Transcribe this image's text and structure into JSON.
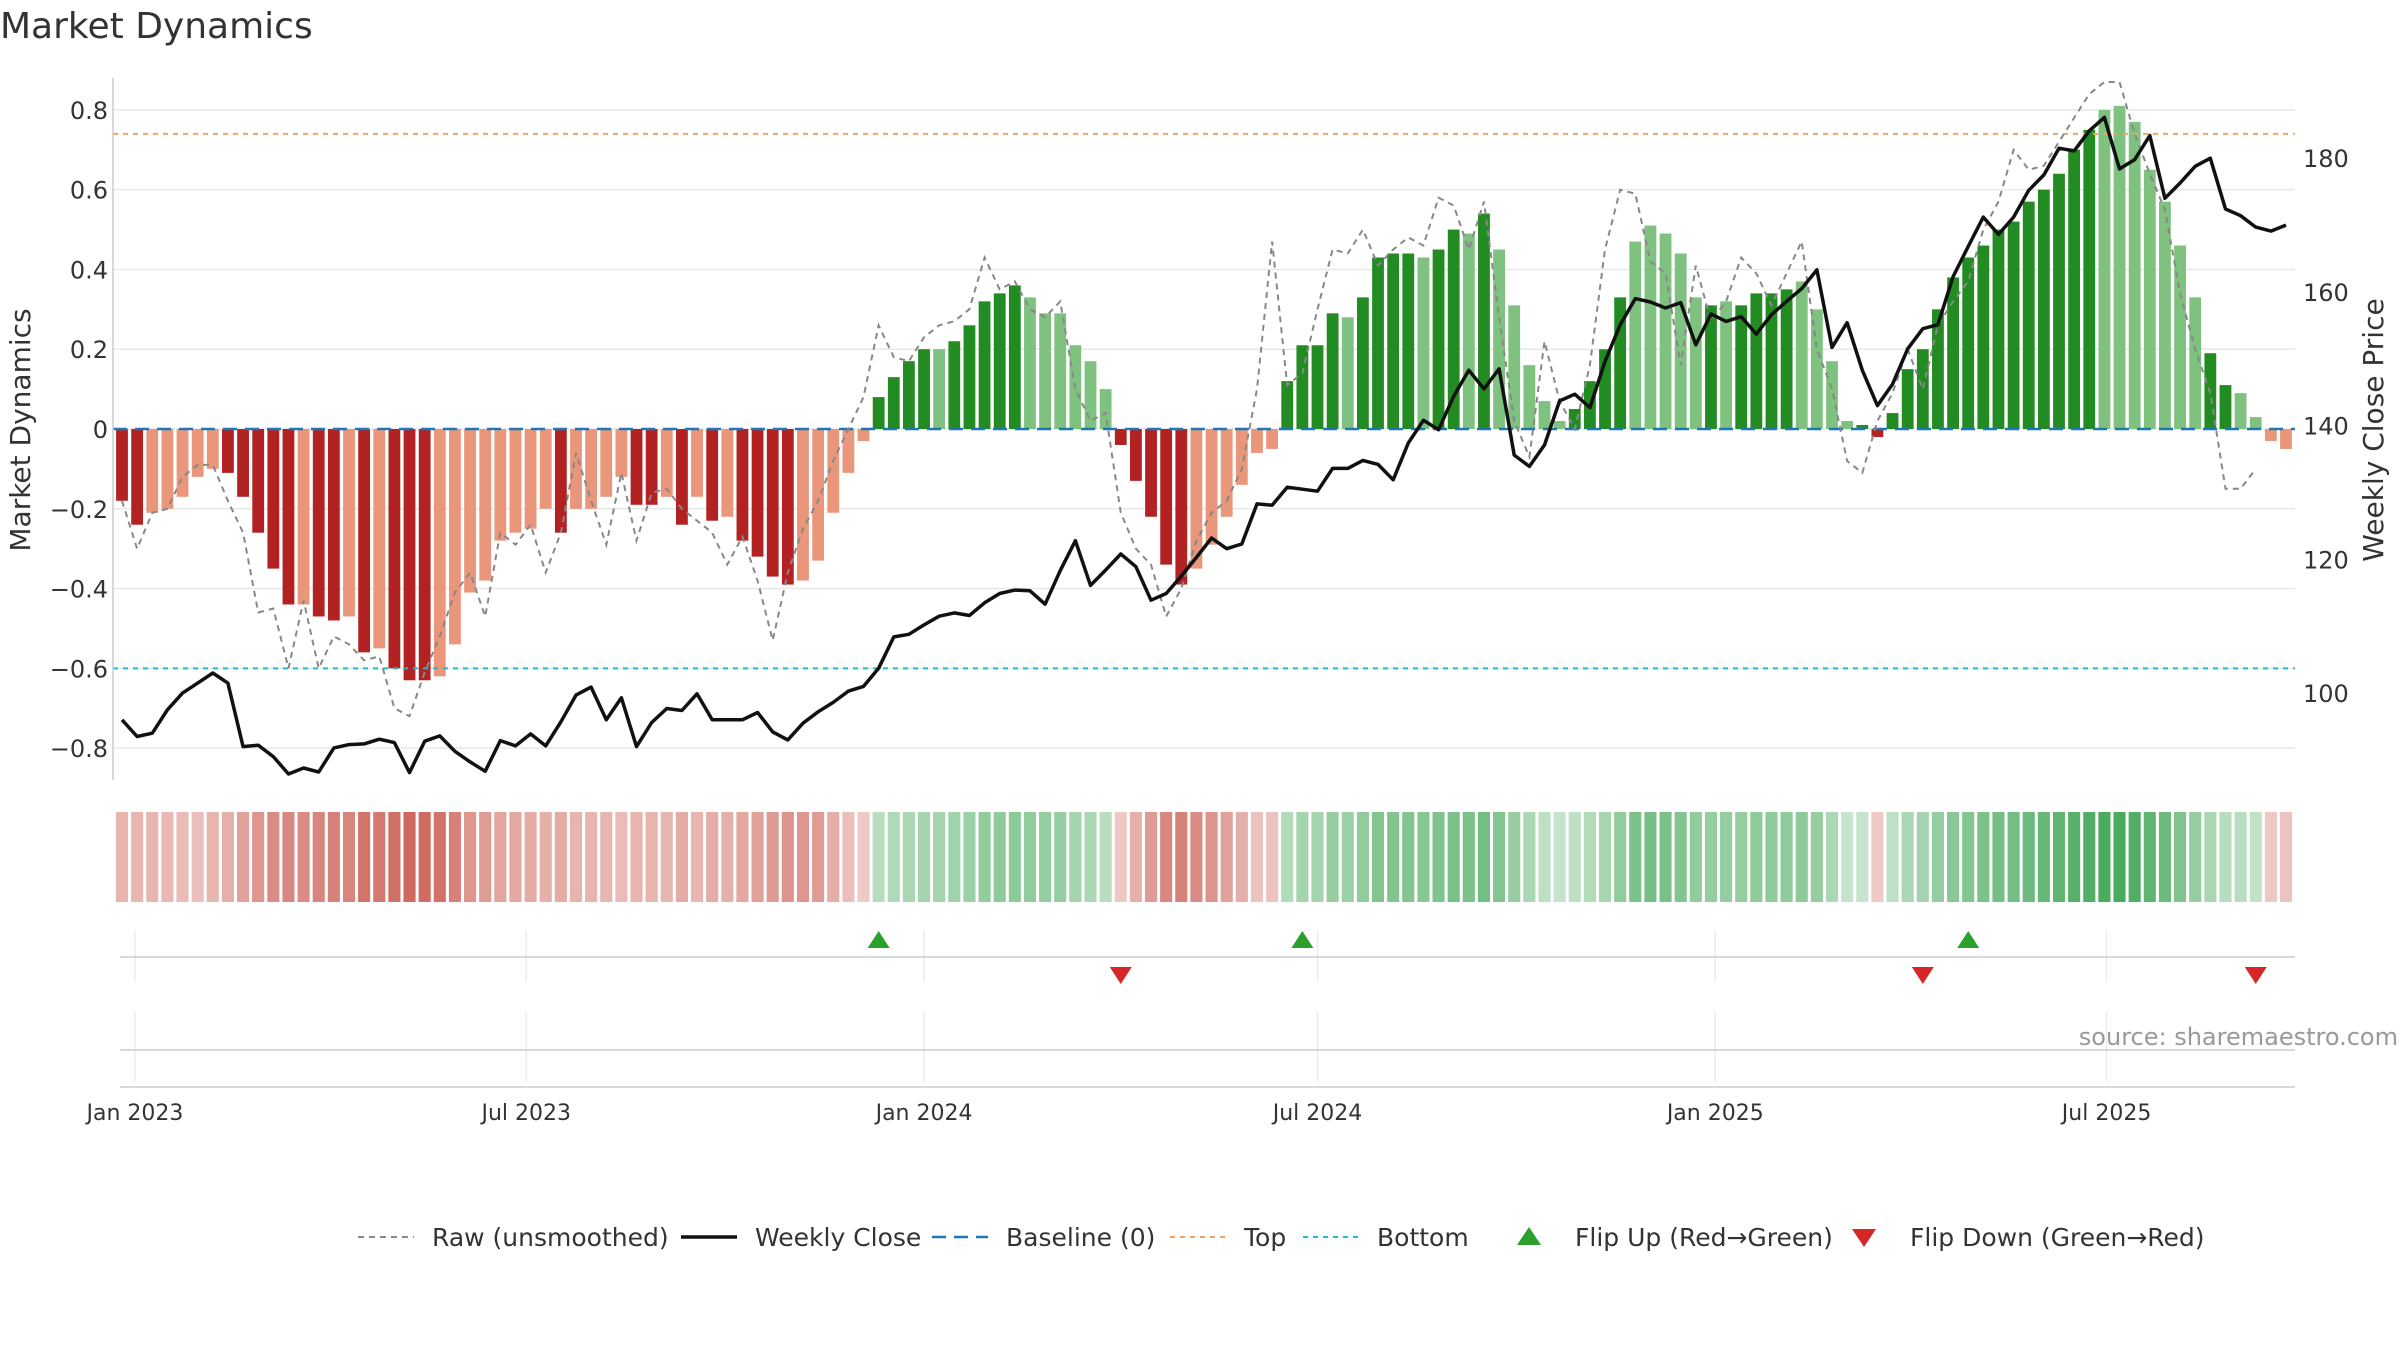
{
  "title": "Market Dynamics",
  "source_note": "source: sharemaestro.com",
  "chart_data": {
    "type": "bar",
    "x_start": "2022-12-26",
    "interval": "weekly",
    "ylabel_left": "Market Dynamics",
    "ylabel_right": "Weekly Close Price",
    "ylim_left": [
      -0.88,
      0.88
    ],
    "ylim_right": [
      87,
      192
    ],
    "yticks_left": [
      0.8,
      0.6,
      0.4,
      0.2,
      0,
      -0.2,
      -0.4,
      -0.6,
      -0.8
    ],
    "yticks_left_labels": [
      "0.8",
      "0.6",
      "0.4",
      "0.2",
      "0",
      "−0.2",
      "−0.4",
      "−0.6",
      "−0.8"
    ],
    "yticks_right": [
      180,
      160,
      140,
      120,
      100
    ],
    "yticks_right_labels": [
      "180",
      "160",
      "140",
      "120",
      "100"
    ],
    "xticks": [
      {
        "date": "2023-01-01",
        "label": "Jan 2023"
      },
      {
        "date": "2023-07-01",
        "label": "Jul 2023"
      },
      {
        "date": "2024-01-01",
        "label": "Jan 2024"
      },
      {
        "date": "2024-07-01",
        "label": "Jul 2024"
      },
      {
        "date": "2025-01-01",
        "label": "Jan 2025"
      },
      {
        "date": "2025-07-01",
        "label": "Jul 2025"
      }
    ],
    "top_line": 0.74,
    "bottom_line": -0.6,
    "baseline": 0,
    "bars": [
      -0.18,
      -0.24,
      -0.21,
      -0.2,
      -0.17,
      -0.12,
      -0.1,
      -0.11,
      -0.17,
      -0.26,
      -0.35,
      -0.44,
      -0.44,
      -0.47,
      -0.48,
      -0.47,
      -0.56,
      -0.55,
      -0.6,
      -0.63,
      -0.63,
      -0.62,
      -0.54,
      -0.41,
      -0.38,
      -0.28,
      -0.26,
      -0.25,
      -0.2,
      -0.26,
      -0.2,
      -0.2,
      -0.17,
      -0.12,
      -0.19,
      -0.19,
      -0.17,
      -0.24,
      -0.17,
      -0.23,
      -0.22,
      -0.28,
      -0.32,
      -0.37,
      -0.39,
      -0.38,
      -0.33,
      -0.21,
      -0.11,
      -0.03,
      0.08,
      0.13,
      0.17,
      0.2,
      0.2,
      0.22,
      0.26,
      0.32,
      0.34,
      0.36,
      0.33,
      0.29,
      0.29,
      0.21,
      0.17,
      0.1,
      -0.04,
      -0.13,
      -0.22,
      -0.34,
      -0.39,
      -0.35,
      -0.29,
      -0.22,
      -0.14,
      -0.06,
      -0.05,
      0.12,
      0.21,
      0.21,
      0.29,
      0.28,
      0.33,
      0.43,
      0.44,
      0.44,
      0.43,
      0.45,
      0.5,
      0.49,
      0.54,
      0.45,
      0.31,
      0.16,
      0.07,
      0.02,
      0.05,
      0.12,
      0.2,
      0.33,
      0.47,
      0.51,
      0.49,
      0.44,
      0.33,
      0.31,
      0.32,
      0.31,
      0.34,
      0.34,
      0.35,
      0.37,
      0.3,
      0.17,
      0.02,
      0.01,
      -0.02,
      0.04,
      0.15,
      0.2,
      0.3,
      0.38,
      0.43,
      0.46,
      0.5,
      0.52,
      0.57,
      0.6,
      0.64,
      0.7,
      0.75,
      0.8,
      0.81,
      0.77,
      0.65,
      0.57,
      0.46,
      0.33,
      0.19,
      0.11,
      0.09,
      0.03,
      -0.03,
      -0.05
    ],
    "bar_shade": [
      "dark",
      "dark",
      "light",
      "light",
      "light",
      "light",
      "light",
      "dark",
      "dark",
      "dark",
      "dark",
      "dark",
      "light",
      "dark",
      "dark",
      "light",
      "dark",
      "light",
      "dark",
      "dark",
      "dark",
      "light",
      "light",
      "light",
      "light",
      "light",
      "light",
      "light",
      "light",
      "dark",
      "light",
      "light",
      "light",
      "light",
      "dark",
      "dark",
      "light",
      "dark",
      "light",
      "dark",
      "light",
      "dark",
      "dark",
      "dark",
      "dark",
      "light",
      "light",
      "light",
      "light",
      "light",
      "dark",
      "dark",
      "dark",
      "dark",
      "light",
      "dark",
      "dark",
      "dark",
      "dark",
      "dark",
      "light",
      "light",
      "light",
      "light",
      "light",
      "light",
      "dark",
      "dark",
      "dark",
      "dark",
      "dark",
      "light",
      "light",
      "light",
      "light",
      "light",
      "light",
      "dark",
      "dark",
      "dark",
      "dark",
      "light",
      "dark",
      "dark",
      "dark",
      "dark",
      "light",
      "dark",
      "dark",
      "light",
      "dark",
      "light",
      "light",
      "light",
      "light",
      "light",
      "dark",
      "dark",
      "dark",
      "dark",
      "light",
      "light",
      "light",
      "light",
      "light",
      "dark",
      "light",
      "dark",
      "dark",
      "dark",
      "dark",
      "light",
      "light",
      "light",
      "light",
      "dark",
      "dark",
      "dark",
      "dark",
      "dark",
      "dark",
      "dark",
      "dark",
      "dark",
      "dark",
      "dark",
      "dark",
      "dark",
      "dark",
      "dark",
      "dark",
      "light",
      "light",
      "light",
      "light",
      "light",
      "light",
      "light",
      "dark",
      "dark"
    ],
    "raw": [
      -0.18,
      -0.3,
      -0.21,
      -0.2,
      -0.12,
      -0.09,
      -0.09,
      -0.18,
      -0.26,
      -0.46,
      -0.45,
      -0.6,
      -0.43,
      -0.6,
      -0.52,
      -0.54,
      -0.58,
      -0.57,
      -0.7,
      -0.72,
      -0.61,
      -0.52,
      -0.41,
      -0.36,
      -0.47,
      -0.26,
      -0.29,
      -0.24,
      -0.36,
      -0.26,
      -0.06,
      -0.18,
      -0.29,
      -0.11,
      -0.28,
      -0.16,
      -0.15,
      -0.2,
      -0.23,
      -0.26,
      -0.34,
      -0.27,
      -0.38,
      -0.53,
      -0.36,
      -0.25,
      -0.18,
      -0.08,
      0.0,
      0.08,
      0.26,
      0.18,
      0.17,
      0.23,
      0.26,
      0.27,
      0.3,
      0.43,
      0.35,
      0.37,
      0.3,
      0.28,
      0.32,
      0.1,
      0.02,
      0.04,
      -0.21,
      -0.3,
      -0.34,
      -0.47,
      -0.4,
      -0.28,
      -0.21,
      -0.18,
      -0.1,
      0.1,
      0.47,
      0.11,
      0.14,
      0.3,
      0.45,
      0.44,
      0.5,
      0.41,
      0.45,
      0.48,
      0.46,
      0.58,
      0.56,
      0.45,
      0.57,
      0.28,
      0.02,
      -0.07,
      0.22,
      0.07,
      0.0,
      0.16,
      0.45,
      0.6,
      0.59,
      0.42,
      0.39,
      0.16,
      0.41,
      0.27,
      0.32,
      0.43,
      0.39,
      0.31,
      0.39,
      0.47,
      0.2,
      0.1,
      -0.08,
      -0.11,
      0.02,
      0.09,
      0.2,
      0.1,
      0.26,
      0.32,
      0.37,
      0.5,
      0.57,
      0.7,
      0.65,
      0.66,
      0.72,
      0.78,
      0.84,
      0.87,
      0.87,
      0.74,
      0.64,
      0.55,
      0.34,
      0.2,
      0.09,
      -0.15,
      -0.15,
      -0.1
    ],
    "close": [
      96.0,
      93.5,
      94.0,
      97.5,
      100.0,
      101.5,
      103.0,
      101.5,
      92.0,
      92.2,
      90.5,
      87.9,
      88.8,
      88.2,
      91.8,
      92.3,
      92.4,
      93.1,
      92.6,
      88.1,
      92.8,
      93.6,
      91.3,
      89.7,
      88.3,
      92.9,
      92.1,
      93.9,
      92.1,
      95.7,
      99.7,
      100.9,
      96.0,
      99.3,
      92.0,
      95.6,
      97.7,
      97.4,
      99.9,
      96.0,
      96.0,
      96.0,
      97.1,
      94.2,
      93.0,
      95.5,
      97.2,
      98.6,
      100.3,
      101.0,
      103.7,
      108.4,
      108.8,
      110.2,
      111.5,
      112.0,
      111.6,
      113.5,
      114.9,
      115.4,
      115.3,
      113.3,
      118.3,
      122.8,
      116.1,
      118.4,
      120.8,
      118.9,
      113.9,
      114.9,
      117.5,
      120.3,
      123.2,
      121.6,
      122.3,
      128.3,
      128.1,
      130.8,
      130.5,
      130.2,
      133.6,
      133.6,
      134.8,
      134.2,
      131.9,
      137.4,
      140.8,
      139.4,
      144.4,
      148.3,
      145.5,
      148.5,
      135.6,
      133.9,
      137.1,
      143.7,
      144.7,
      142.7,
      149.6,
      155.1,
      159.0,
      158.5,
      157.6,
      158.4,
      152.1,
      156.7,
      155.6,
      156.3,
      153.7,
      156.6,
      158.6,
      160.5,
      163.3,
      151.7,
      155.4,
      148.3,
      143.0,
      146.2,
      151.5,
      154.5,
      155.1,
      162.3,
      166.8,
      171.2,
      168.6,
      171.2,
      175.2,
      177.5,
      181.5,
      181.1,
      184.1,
      186.1,
      178.4,
      179.8,
      183.4,
      174.0,
      176.3,
      178.8,
      180.0,
      172.4,
      171.4,
      169.7,
      169.1,
      170.0
    ],
    "strip_intensity": [
      0.28,
      0.26,
      0.27,
      0.24,
      0.22,
      0.2,
      0.26,
      0.3,
      0.4,
      0.48,
      0.55,
      0.58,
      0.56,
      0.6,
      0.62,
      0.6,
      0.72,
      0.7,
      0.76,
      0.8,
      0.78,
      0.74,
      0.62,
      0.48,
      0.44,
      0.38,
      0.36,
      0.34,
      0.3,
      0.34,
      0.28,
      0.28,
      0.26,
      0.22,
      0.28,
      0.28,
      0.26,
      0.34,
      0.26,
      0.32,
      0.3,
      0.36,
      0.4,
      0.46,
      0.5,
      0.48,
      0.44,
      0.32,
      0.2,
      0.12,
      0.22,
      0.28,
      0.32,
      0.36,
      0.36,
      0.38,
      0.42,
      0.48,
      0.5,
      0.52,
      0.48,
      0.44,
      0.44,
      0.36,
      0.3,
      0.22,
      0.14,
      0.3,
      0.44,
      0.58,
      0.62,
      0.56,
      0.5,
      0.42,
      0.3,
      0.18,
      0.16,
      0.26,
      0.36,
      0.36,
      0.44,
      0.42,
      0.48,
      0.58,
      0.58,
      0.58,
      0.56,
      0.6,
      0.64,
      0.62,
      0.68,
      0.58,
      0.44,
      0.3,
      0.2,
      0.14,
      0.18,
      0.26,
      0.34,
      0.48,
      0.62,
      0.66,
      0.64,
      0.58,
      0.48,
      0.44,
      0.46,
      0.44,
      0.5,
      0.5,
      0.5,
      0.52,
      0.44,
      0.3,
      0.14,
      0.14,
      0.12,
      0.18,
      0.3,
      0.36,
      0.46,
      0.54,
      0.58,
      0.62,
      0.66,
      0.68,
      0.72,
      0.76,
      0.8,
      0.86,
      0.9,
      0.95,
      0.96,
      0.9,
      0.8,
      0.72,
      0.6,
      0.46,
      0.32,
      0.24,
      0.22,
      0.16,
      0.14,
      0.16
    ],
    "flips_up": [
      "2023-12-11",
      "2024-06-24",
      "2025-04-28"
    ],
    "flips_down": [
      "2024-04-01",
      "2025-04-07",
      "2025-09-08"
    ],
    "legend": [
      {
        "label": "Raw (unsmoothed)",
        "style": "gray-dashed"
      },
      {
        "label": "Weekly Close",
        "style": "black-line"
      },
      {
        "label": "Baseline (0)",
        "style": "blue-dashed"
      },
      {
        "label": "Top",
        "style": "orange-dotted"
      },
      {
        "label": "Bottom",
        "style": "cyan-dotted"
      },
      {
        "label": "Flip Up (Red→Green)",
        "style": "green-up-triangle"
      },
      {
        "label": "Flip Down (Green→Red)",
        "style": "red-down-triangle"
      }
    ],
    "colors": {
      "bar_red_dark": "#b22222",
      "bar_red_light": "#e9967a",
      "bar_green_dark": "#228b22",
      "bar_green_light": "#7fc17f",
      "raw_line": "#888888",
      "close_line": "#111111",
      "baseline": "#1f77b4",
      "top": "#f4a261",
      "bottom": "#17becf",
      "flip_up": "#2ca02c",
      "flip_down": "#d62728",
      "strip_red": "#c0392b",
      "strip_green": "#2e9e44",
      "grid": "#e8e8e8",
      "axis_text": "#333333"
    }
  }
}
